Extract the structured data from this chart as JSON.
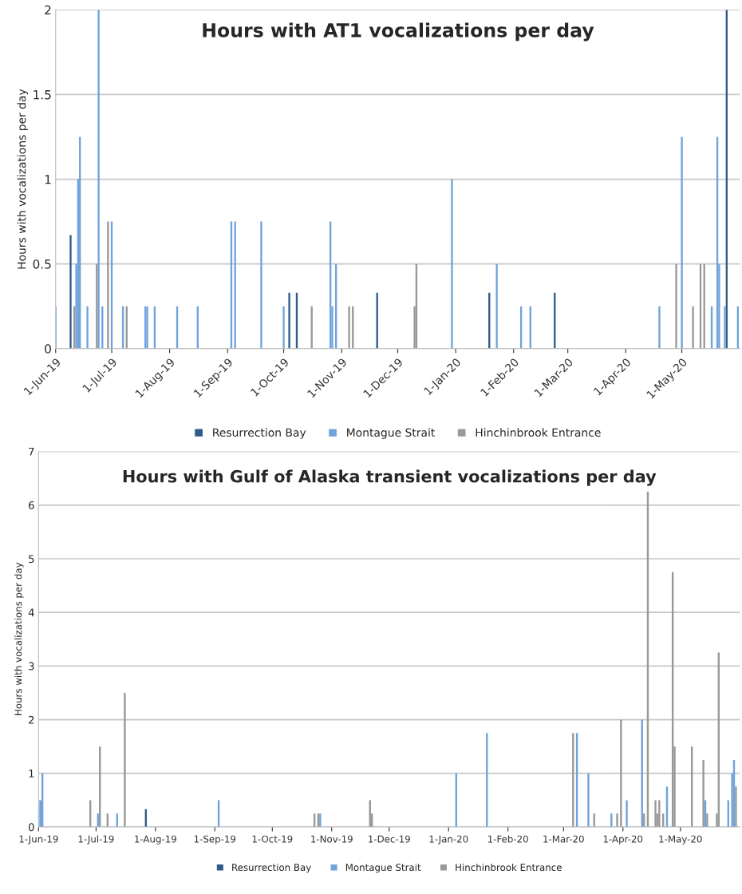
{
  "chart_data": [
    {
      "type": "bar",
      "title": "Hours with AT1 vocalizations per day",
      "ylabel": "Hours with vocalizations per day",
      "ylim": [
        0,
        2
      ],
      "yticks": [
        0,
        0.5,
        1,
        1.5,
        2
      ],
      "xlim": [
        "2019-06-01",
        "2020-06-01"
      ],
      "xticks": [
        {
          "value": "2019-06-01",
          "label": "1-Jun-19"
        },
        {
          "value": "2019-07-01",
          "label": "1-Jul-19"
        },
        {
          "value": "2019-08-01",
          "label": "1-Aug-19"
        },
        {
          "value": "2019-09-01",
          "label": "1-Sep-19"
        },
        {
          "value": "2019-10-01",
          "label": "1-Oct-19"
        },
        {
          "value": "2019-11-01",
          "label": "1-Nov-19"
        },
        {
          "value": "2019-12-01",
          "label": "1-Dec-19"
        },
        {
          "value": "2020-01-01",
          "label": "1-Jan-20"
        },
        {
          "value": "2020-02-01",
          "label": "1-Feb-20"
        },
        {
          "value": "2020-03-01",
          "label": "1-Mar-20"
        },
        {
          "value": "2020-04-01",
          "label": "1-Apr-20"
        },
        {
          "value": "2020-05-01",
          "label": "1-May-20"
        }
      ],
      "grid": "y",
      "legend": "bottom",
      "series": [
        {
          "name": "Resurrection Bay",
          "color": "#2f5b88",
          "x": [
            "2019-06-09",
            "2019-10-04",
            "2019-10-08",
            "2019-11-20",
            "2020-01-19",
            "2020-02-23",
            "2020-05-25"
          ],
          "values": [
            0.67,
            0.33,
            0.33,
            0.33,
            0.33,
            0.33,
            2
          ]
        },
        {
          "name": "Montague Strait",
          "color": "#6fa3dc",
          "x": [
            "2019-06-01",
            "2019-06-12",
            "2019-06-13",
            "2019-06-14",
            "2019-06-18",
            "2019-06-24",
            "2019-06-26",
            "2019-07-01",
            "2019-07-07",
            "2019-07-19",
            "2019-07-20",
            "2019-07-24",
            "2019-08-05",
            "2019-08-16",
            "2019-09-03",
            "2019-09-05",
            "2019-09-19",
            "2019-10-01",
            "2019-10-26",
            "2019-10-27",
            "2019-10-29",
            "2019-12-30",
            "2020-01-23",
            "2020-02-05",
            "2020-02-10",
            "2020-04-19",
            "2020-05-01",
            "2020-05-17",
            "2020-05-20",
            "2020-05-21",
            "2020-05-24",
            "2020-05-31"
          ],
          "values": [
            0.25,
            0.5,
            1,
            1.25,
            0.25,
            2,
            0.25,
            0.75,
            0.25,
            0.25,
            0.25,
            0.25,
            0.25,
            0.25,
            0.75,
            0.75,
            0.75,
            0.25,
            0.75,
            0.25,
            0.5,
            1,
            0.5,
            0.25,
            0.25,
            0.25,
            1.25,
            0.25,
            1.25,
            0.5,
            0.25,
            0.25
          ]
        },
        {
          "name": "Hinchinbrook Entrance",
          "color": "#999999",
          "x": [
            "2019-06-11",
            "2019-06-23",
            "2019-06-29",
            "2019-07-09",
            "2019-10-16",
            "2019-11-05",
            "2019-11-07",
            "2019-12-10",
            "2019-12-11",
            "2020-04-28",
            "2020-05-07",
            "2020-05-11",
            "2020-05-13"
          ],
          "values": [
            0.25,
            0.5,
            0.75,
            0.25,
            0.25,
            0.25,
            0.25,
            0.25,
            0.5,
            0.5,
            0.25,
            0.5,
            0.5
          ]
        }
      ]
    },
    {
      "type": "bar",
      "title": "Hours with Gulf of Alaska transient vocalizations per day",
      "ylabel": "Hours with vocalizations per day",
      "ylim": [
        0,
        7
      ],
      "yticks": [
        0,
        1,
        2,
        3,
        4,
        5,
        6,
        7
      ],
      "xlim": [
        "2019-06-01",
        "2020-06-01"
      ],
      "xticks": [
        {
          "value": "2019-06-01",
          "label": "1-Jun-19"
        },
        {
          "value": "2019-07-01",
          "label": "1-Jul-19"
        },
        {
          "value": "2019-08-01",
          "label": "1-Aug-19"
        },
        {
          "value": "2019-09-01",
          "label": "1-Sep-19"
        },
        {
          "value": "2019-10-01",
          "label": "1-Oct-19"
        },
        {
          "value": "2019-11-01",
          "label": "1-Nov-19"
        },
        {
          "value": "2019-12-01",
          "label": "1-Dec-19"
        },
        {
          "value": "2020-01-01",
          "label": "1-Jan-20"
        },
        {
          "value": "2020-02-01",
          "label": "1-Feb-20"
        },
        {
          "value": "2020-03-01",
          "label": "1-Mar-20"
        },
        {
          "value": "2020-04-01",
          "label": "1-Apr-20"
        },
        {
          "value": "2020-05-01",
          "label": "1-May-20"
        }
      ],
      "grid": "y",
      "legend": "bottom",
      "series": [
        {
          "name": "Resurrection Bay",
          "color": "#2f5b88",
          "x": [
            "2019-07-27"
          ],
          "values": [
            0.33
          ]
        },
        {
          "name": "Montague Strait",
          "color": "#6fa3dc",
          "x": [
            "2019-06-01",
            "2019-06-02",
            "2019-06-03",
            "2019-07-02",
            "2019-07-12",
            "2019-09-03",
            "2019-10-26",
            "2020-01-05",
            "2020-01-21",
            "2020-03-08",
            "2020-03-14",
            "2020-03-26",
            "2020-04-03",
            "2020-04-11",
            "2020-04-24",
            "2020-05-14",
            "2020-05-26",
            "2020-05-28",
            "2020-05-29"
          ],
          "values": [
            0.5,
            0.5,
            1,
            0.25,
            0.25,
            0.5,
            0.25,
            1,
            1.75,
            1.75,
            1,
            0.25,
            0.5,
            2,
            0.75,
            0.5,
            0.5,
            1,
            1.25
          ]
        },
        {
          "name": "Hinchinbrook Entrance",
          "color": "#999999",
          "x": [
            "2019-06-28",
            "2019-07-03",
            "2019-07-07",
            "2019-07-16",
            "2019-10-23",
            "2019-10-25",
            "2019-11-21",
            "2019-11-22",
            "2020-03-06",
            "2020-03-17",
            "2020-03-29",
            "2020-03-31",
            "2020-04-12",
            "2020-04-14",
            "2020-04-18",
            "2020-04-19",
            "2020-04-20",
            "2020-04-22",
            "2020-04-27",
            "2020-04-28",
            "2020-05-07",
            "2020-05-13",
            "2020-05-15",
            "2020-05-20",
            "2020-05-21",
            "2020-05-30"
          ],
          "values": [
            0.5,
            1.5,
            0.25,
            2.5,
            0.25,
            0.25,
            0.5,
            0.25,
            1.75,
            0.25,
            0.25,
            2,
            0.25,
            6.25,
            0.5,
            0.25,
            0.5,
            0.25,
            4.75,
            1.5,
            1.5,
            1.25,
            0.25,
            0.25,
            3.25,
            0.75
          ]
        }
      ]
    }
  ]
}
